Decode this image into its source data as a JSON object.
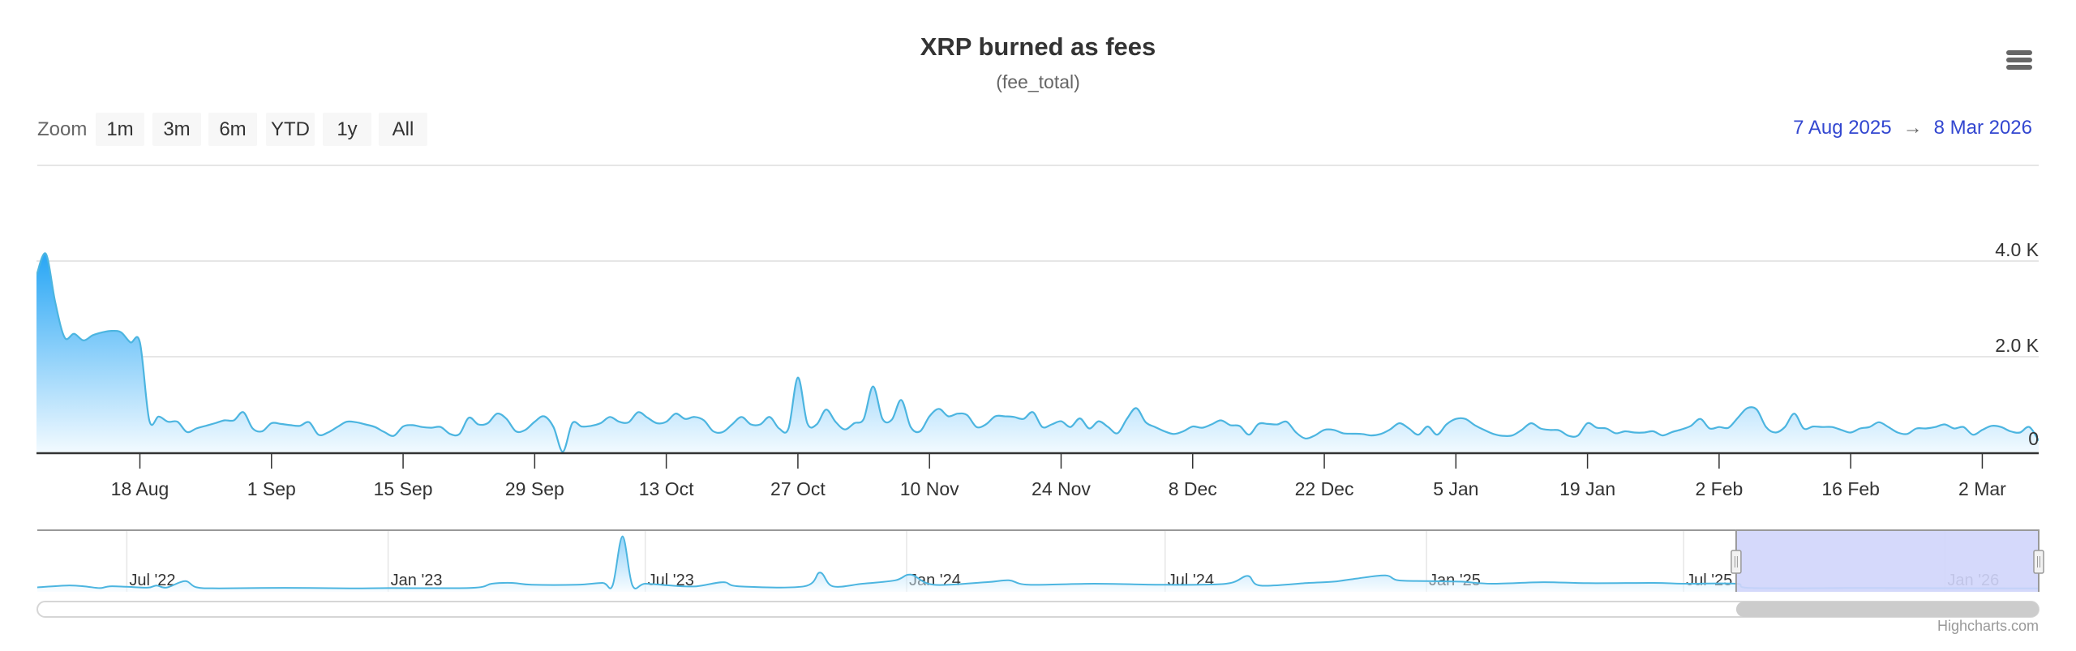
{
  "header": {
    "title": "XRP burned as fees",
    "subtitle": "(fee_total)",
    "menu_icon": "hamburger-menu-icon"
  },
  "range_selector": {
    "zoom_label": "Zoom",
    "buttons": [
      "1m",
      "3m",
      "6m",
      "YTD",
      "1y",
      "All"
    ],
    "from": "7 Aug 2025",
    "arrow": "→",
    "to": "8 Mar 2026"
  },
  "credits": "Highcharts.com",
  "colors": {
    "line": "#4cb5e0",
    "fill_top": "#2fa9f5",
    "fill_bottom": "#f2faff",
    "range_text": "#3347d0",
    "navigator_mask": "#d0d5fb"
  },
  "chart_data": {
    "type": "area",
    "title": "XRP burned as fees",
    "subtitle": "(fee_total)",
    "xlim": [
      "2025-08-07",
      "2026-03-08"
    ],
    "ylim": [
      0,
      4000
    ],
    "grid": true,
    "y_ticks": [
      {
        "value": 0,
        "label": "0"
      },
      {
        "value": 2000,
        "label": "2.0 K"
      },
      {
        "value": 4000,
        "label": "4.0 K"
      }
    ],
    "x_ticks": [
      {
        "date": "2025-08-18",
        "label": "18 Aug"
      },
      {
        "date": "2025-09-01",
        "label": "1 Sep"
      },
      {
        "date": "2025-09-15",
        "label": "15 Sep"
      },
      {
        "date": "2025-09-29",
        "label": "29 Sep"
      },
      {
        "date": "2025-10-13",
        "label": "13 Oct"
      },
      {
        "date": "2025-10-27",
        "label": "27 Oct"
      },
      {
        "date": "2025-11-10",
        "label": "10 Nov"
      },
      {
        "date": "2025-11-24",
        "label": "24 Nov"
      },
      {
        "date": "2025-12-08",
        "label": "8 Dec"
      },
      {
        "date": "2025-12-22",
        "label": "22 Dec"
      },
      {
        "date": "2026-01-05",
        "label": "5 Jan"
      },
      {
        "date": "2026-01-19",
        "label": "19 Jan"
      },
      {
        "date": "2026-02-02",
        "label": "2 Feb"
      },
      {
        "date": "2026-02-16",
        "label": "16 Feb"
      },
      {
        "date": "2026-03-02",
        "label": "2 Mar"
      }
    ],
    "series": [
      {
        "points": {
          "2025-08-07": 3700,
          "2025-08-08": 4150,
          "2025-08-09": 3130,
          "2025-08-10": 2400,
          "2025-08-11": 2480,
          "2025-08-12": 2340,
          "2025-08-13": 2450,
          "2025-08-14": 2510,
          "2025-08-15": 2540,
          "2025-08-16": 2510,
          "2025-08-17": 2300,
          "2025-08-18": 2300,
          "2025-08-19": 670,
          "2025-08-20": 750,
          "2025-08-21": 640,
          "2025-08-22": 640,
          "2025-08-23": 425,
          "2025-08-24": 500,
          "2025-08-25": 555,
          "2025-08-26": 610,
          "2025-08-27": 670,
          "2025-08-28": 670,
          "2025-08-29": 840,
          "2025-08-30": 500,
          "2025-08-31": 440,
          "2025-09-01": 610,
          "2025-09-02": 595,
          "2025-09-03": 570,
          "2025-09-04": 555,
          "2025-09-05": 630,
          "2025-09-06": 370,
          "2025-09-07": 415,
          "2025-09-08": 530,
          "2025-09-09": 640,
          "2025-09-10": 630,
          "2025-09-11": 585,
          "2025-09-12": 530,
          "2025-09-13": 425,
          "2025-09-14": 345,
          "2025-09-15": 540,
          "2025-09-16": 570,
          "2025-09-17": 530,
          "2025-09-18": 515,
          "2025-09-19": 530,
          "2025-09-20": 385,
          "2025-09-21": 385,
          "2025-09-22": 725,
          "2025-09-23": 585,
          "2025-09-24": 610,
          "2025-09-25": 810,
          "2025-09-26": 700,
          "2025-09-27": 440,
          "2025-09-28": 470,
          "2025-09-29": 640,
          "2025-09-30": 755,
          "2025-10-01": 530,
          "2025-10-02": 15,
          "2025-10-03": 610,
          "2025-10-04": 540,
          "2025-10-05": 555,
          "2025-10-06": 610,
          "2025-10-07": 740,
          "2025-10-08": 640,
          "2025-10-09": 630,
          "2025-10-10": 840,
          "2025-10-11": 725,
          "2025-10-12": 610,
          "2025-10-13": 640,
          "2025-10-14": 810,
          "2025-10-15": 700,
          "2025-10-16": 740,
          "2025-10-17": 670,
          "2025-10-18": 440,
          "2025-10-19": 425,
          "2025-10-20": 585,
          "2025-10-21": 740,
          "2025-10-22": 585,
          "2025-10-23": 585,
          "2025-10-24": 740,
          "2025-10-25": 500,
          "2025-10-26": 500,
          "2025-10-27": 1565,
          "2025-10-28": 610,
          "2025-10-29": 585,
          "2025-10-30": 895,
          "2025-10-31": 640,
          "2025-11-01": 480,
          "2025-11-02": 610,
          "2025-11-03": 700,
          "2025-11-04": 1380,
          "2025-11-05": 700,
          "2025-11-06": 685,
          "2025-11-07": 1095,
          "2025-11-08": 530,
          "2025-11-09": 440,
          "2025-11-10": 755,
          "2025-11-11": 910,
          "2025-11-12": 755,
          "2025-11-13": 810,
          "2025-11-14": 780,
          "2025-11-15": 530,
          "2025-11-16": 585,
          "2025-11-17": 755,
          "2025-11-18": 755,
          "2025-11-19": 740,
          "2025-11-20": 700,
          "2025-11-21": 840,
          "2025-11-22": 530,
          "2025-11-23": 585,
          "2025-11-24": 650,
          "2025-11-25": 530,
          "2025-11-26": 710,
          "2025-11-27": 500,
          "2025-11-28": 650,
          "2025-11-29": 530,
          "2025-11-30": 400,
          "2025-12-01": 700,
          "2025-12-02": 925,
          "2025-12-03": 630,
          "2025-12-04": 530,
          "2025-12-05": 440,
          "2025-12-06": 385,
          "2025-12-07": 440,
          "2025-12-08": 540,
          "2025-12-09": 515,
          "2025-12-10": 585,
          "2025-12-11": 670,
          "2025-12-12": 570,
          "2025-12-13": 550,
          "2025-12-14": 370,
          "2025-12-15": 595,
          "2025-12-16": 595,
          "2025-12-17": 585,
          "2025-12-18": 640,
          "2025-12-19": 415,
          "2025-12-20": 290,
          "2025-12-21": 355,
          "2025-12-22": 470,
          "2025-12-23": 470,
          "2025-12-24": 400,
          "2025-12-25": 390,
          "2025-12-26": 385,
          "2025-12-27": 355,
          "2025-12-28": 385,
          "2025-12-29": 480,
          "2025-12-30": 610,
          "2025-12-31": 500,
          "2026-01-01": 370,
          "2026-01-02": 540,
          "2026-01-03": 370,
          "2026-01-04": 585,
          "2026-01-05": 700,
          "2026-01-06": 700,
          "2026-01-07": 570,
          "2026-01-08": 470,
          "2026-01-09": 385,
          "2026-01-10": 345,
          "2026-01-11": 355,
          "2026-01-12": 470,
          "2026-01-13": 610,
          "2026-01-14": 500,
          "2026-01-15": 470,
          "2026-01-16": 460,
          "2026-01-17": 345,
          "2026-01-18": 355,
          "2026-01-19": 610,
          "2026-01-20": 515,
          "2026-01-21": 500,
          "2026-01-22": 400,
          "2026-01-23": 440,
          "2026-01-24": 415,
          "2026-01-25": 415,
          "2026-01-26": 440,
          "2026-01-27": 355,
          "2026-01-28": 425,
          "2026-01-29": 480,
          "2026-01-30": 555,
          "2026-01-31": 700,
          "2026-02-01": 500,
          "2026-02-02": 530,
          "2026-02-03": 515,
          "2026-02-04": 725,
          "2026-02-05": 925,
          "2026-02-06": 895,
          "2026-02-07": 530,
          "2026-02-08": 415,
          "2026-02-09": 530,
          "2026-02-10": 810,
          "2026-02-11": 500,
          "2026-02-12": 540,
          "2026-02-13": 530,
          "2026-02-14": 530,
          "2026-02-15": 470,
          "2026-02-16": 415,
          "2026-02-17": 500,
          "2026-02-18": 530,
          "2026-02-19": 630,
          "2026-02-20": 530,
          "2026-02-21": 415,
          "2026-02-22": 385,
          "2026-02-23": 500,
          "2026-02-24": 500,
          "2026-02-25": 530,
          "2026-02-26": 585,
          "2026-02-27": 500,
          "2026-02-28": 530,
          "2026-03-01": 370,
          "2026-03-02": 470,
          "2026-03-03": 555,
          "2026-03-04": 530,
          "2026-03-05": 440,
          "2026-03-06": 415,
          "2026-03-07": 530,
          "2026-03-08": 245
        }
      }
    ],
    "navigator": {
      "xlim": [
        "2022-04-29",
        "2026-03-08"
      ],
      "selected_range": [
        "2025-08-07",
        "2026-03-08"
      ],
      "x_ticks": [
        {
          "date": "2022-07-01",
          "label": "Jul '22"
        },
        {
          "date": "2023-01-01",
          "label": "Jan '23"
        },
        {
          "date": "2023-07-01",
          "label": "Jul '23"
        },
        {
          "date": "2024-01-01",
          "label": "Jan '24"
        },
        {
          "date": "2024-07-01",
          "label": "Jul '24"
        },
        {
          "date": "2025-01-01",
          "label": "Jan '25"
        },
        {
          "date": "2025-07-01",
          "label": "Jul '25"
        },
        {
          "date": "2026-01-01",
          "label": "Jan '26"
        }
      ],
      "points": {
        "2022-04-29": 880,
        "2022-05-20": 1650,
        "2022-06-01": 1320,
        "2022-06-12": 550,
        "2022-06-19": 1320,
        "2022-07-01": 1100,
        "2022-07-16": 770,
        "2022-07-22": 1650,
        "2022-07-29": 770,
        "2022-08-11": 3520,
        "2022-08-19": 880,
        "2022-09-04": 440,
        "2022-10-20": 660,
        "2022-12-05": 440,
        "2023-01-01": 550,
        "2023-03-01": 660,
        "2023-03-15": 2420,
        "2023-03-29": 2750,
        "2023-04-12": 1980,
        "2023-05-14": 1980,
        "2023-06-01": 2750,
        "2023-06-08": 1650,
        "2023-06-15": 22550,
        "2023-06-22": 1650,
        "2023-07-01": 2420,
        "2023-07-21": 1540,
        "2023-08-06": 1320,
        "2023-08-25": 3080,
        "2023-09-05": 1320,
        "2023-10-21": 1320,
        "2023-11-01": 7150,
        "2023-11-10": 1320,
        "2023-12-01": 2420,
        "2023-12-24": 3850,
        "2024-01-04": 6270,
        "2024-01-20": 1980,
        "2024-02-26": 3080,
        "2024-03-13": 3850,
        "2024-03-27": 1980,
        "2024-05-12": 2420,
        "2024-07-01": 1980,
        "2024-08-13": 2420,
        "2024-08-28": 5720,
        "2024-09-06": 1650,
        "2024-10-10": 2750,
        "2024-10-28": 3300,
        "2024-11-13": 4620,
        "2024-12-03": 5940,
        "2024-12-12": 3850,
        "2025-01-01": 3520,
        "2025-01-25": 3300,
        "2025-02-16": 2420,
        "2025-03-24": 3080,
        "2025-04-25": 2640,
        "2025-06-10": 2750,
        "2025-07-01": 2420,
        "2025-08-07": 2420,
        "2025-08-18": 600,
        "2025-11-01": 600,
        "2026-01-01": 500,
        "2026-03-08": 450
      }
    }
  }
}
